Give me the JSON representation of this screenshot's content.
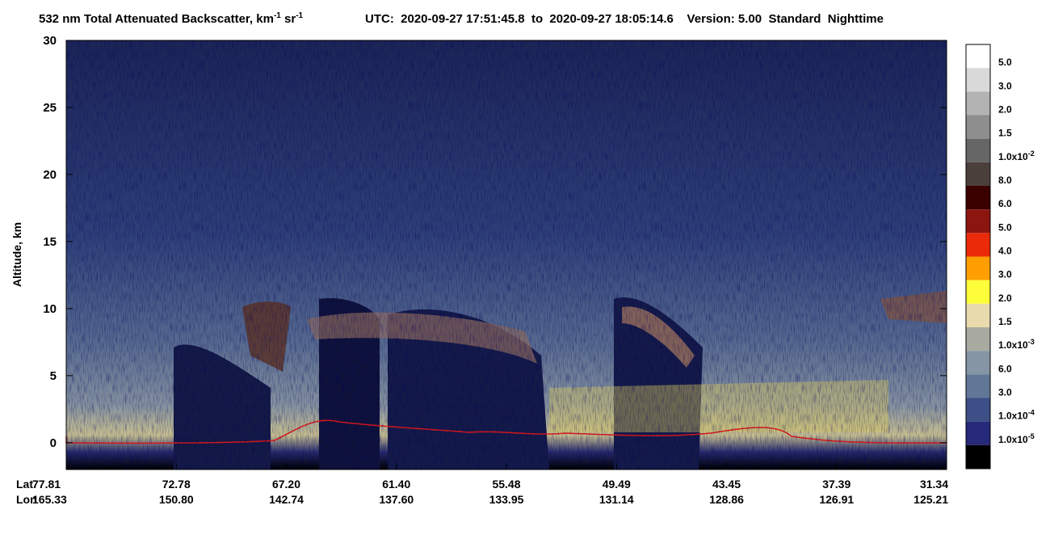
{
  "chart_data": {
    "type": "heatmap",
    "title": [
      "532 nm Total Attenuated Backscatter, km",
      "-1",
      " sr",
      "-1"
    ],
    "info": "UTC:  2020-09-27 17:51:45.8  to  2020-09-27 18:05:14.6    Version: 5.00  Standard  Nighttime",
    "ylabel": "Altitude, km",
    "ylim": [
      -2,
      30
    ],
    "yticks": [
      0,
      5,
      10,
      15,
      20,
      25,
      30
    ],
    "x_rows": [
      {
        "name": "Lat",
        "labels": [
          "77.81",
          "72.78",
          "67.20",
          "61.40",
          "55.48",
          "49.49",
          "43.45",
          "37.39",
          "31.34"
        ]
      },
      {
        "name": "Lon",
        "labels": [
          "165.33",
          "150.80",
          "142.74",
          "137.60",
          "133.95",
          "131.14",
          "128.86",
          "126.91",
          "125.21"
        ]
      }
    ],
    "colorbar": {
      "colors": [
        "#ffffff",
        "#d9d9d9",
        "#b3b3b3",
        "#8e8e8e",
        "#666666",
        "#4b3f3b",
        "#3b0000",
        "#8c1510",
        "#eb2a0a",
        "#ff9e00",
        "#fdfd3a",
        "#eadbae",
        "#a9aa9f",
        "#8595a5",
        "#607796",
        "#3c4f86",
        "#26287a",
        "#000000"
      ],
      "labels": [
        "5.0",
        "3.0",
        "2.0",
        "1.5",
        {
          "base": "1.0x10",
          "exp": "-2"
        },
        "8.0",
        "6.0",
        "5.0",
        "4.0",
        "3.0",
        "2.0",
        "1.5",
        {
          "base": "1.0x10",
          "exp": "-3"
        },
        "6.0",
        "3.0",
        {
          "base": "1.0x10",
          "exp": "-4"
        },
        {
          "base": "1.0x10",
          "exp": "-5"
        }
      ]
    }
  }
}
